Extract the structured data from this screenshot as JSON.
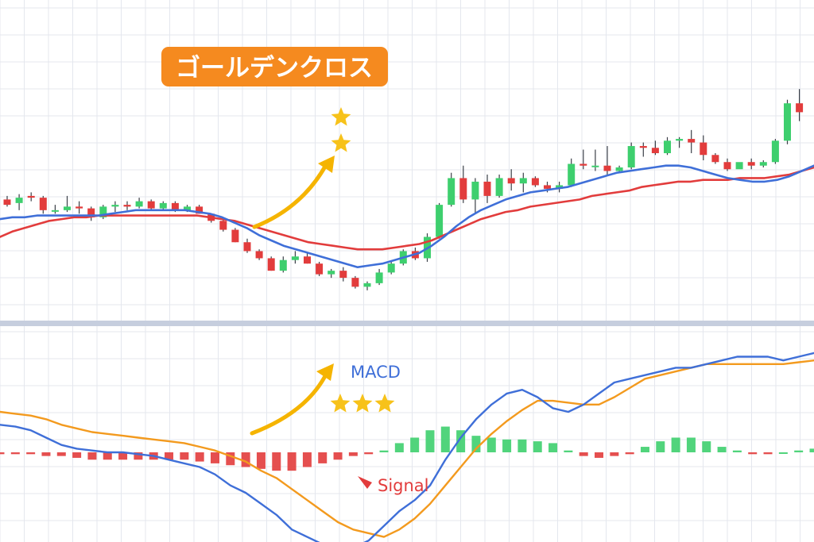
{
  "title": "ゴールデンクロス",
  "colors": {
    "background": "#ffffff",
    "grid": "#e4e7ee",
    "separator": "#c6cede",
    "bull": "#3ecf6e",
    "bear": "#e23c3c",
    "fast_ma": "#3f6fd8",
    "slow_ma": "#e23c3c",
    "macd_line": "#3f6fd8",
    "signal_line": "#f39a1e",
    "title_bg": "#f58a1f",
    "title_text": "#ffffff",
    "arrow": "#f5b400",
    "star": "#f7c21a",
    "macd_label": "#3f6fd8",
    "signal_label": "#e23c3c"
  },
  "chart_data": [
    {
      "type": "candlestick",
      "x": [
        1,
        2,
        3,
        4,
        5,
        6,
        7,
        8,
        9,
        10,
        11,
        12,
        13,
        14,
        15,
        16,
        17,
        18,
        19,
        20,
        21,
        22,
        23,
        24,
        25,
        26,
        27,
        28,
        29,
        30,
        31,
        32,
        33,
        34,
        35,
        36,
        37,
        38,
        39,
        40,
        41,
        42,
        43,
        44,
        45,
        46,
        47,
        48,
        49,
        50,
        51,
        52,
        53,
        54,
        55,
        56,
        57,
        58,
        59,
        60,
        61,
        62,
        63,
        64,
        65,
        66,
        67
      ],
      "ohlc": [
        [
          68,
          70,
          64,
          65
        ],
        [
          66,
          71,
          62,
          69
        ],
        [
          70,
          72,
          67,
          69
        ],
        [
          69,
          70,
          60,
          62
        ],
        [
          62,
          65,
          60,
          62
        ],
        [
          62,
          70,
          61,
          64
        ],
        [
          64,
          67,
          60,
          63
        ],
        [
          63,
          64,
          56,
          58
        ],
        [
          58,
          65,
          57,
          64
        ],
        [
          64,
          67,
          61,
          65
        ],
        [
          65,
          67,
          62,
          64
        ],
        [
          64,
          69,
          63,
          67
        ],
        [
          67,
          68,
          62,
          63
        ],
        [
          63,
          67,
          62,
          66
        ],
        [
          66,
          67,
          61,
          62
        ],
        [
          62,
          65,
          61,
          64
        ],
        [
          64,
          65,
          60,
          60
        ],
        [
          60,
          60,
          55,
          56
        ],
        [
          56,
          57,
          50,
          51
        ],
        [
          51,
          52,
          44,
          44
        ],
        [
          44,
          46,
          38,
          39
        ],
        [
          39,
          40,
          34,
          35
        ],
        [
          35,
          36,
          28,
          28
        ],
        [
          28,
          36,
          27,
          34
        ],
        [
          34,
          39,
          32,
          36
        ],
        [
          36,
          38,
          32,
          32
        ],
        [
          32,
          33,
          25,
          26
        ],
        [
          26,
          29,
          24,
          28
        ],
        [
          28,
          30,
          22,
          24
        ],
        [
          24,
          25,
          18,
          19
        ],
        [
          19,
          22,
          17,
          21
        ],
        [
          21,
          29,
          20,
          27
        ],
        [
          27,
          33,
          26,
          32
        ],
        [
          32,
          40,
          31,
          39
        ],
        [
          39,
          41,
          34,
          35
        ],
        [
          35,
          49,
          33,
          47
        ],
        [
          47,
          66,
          46,
          65
        ],
        [
          65,
          83,
          64,
          80
        ],
        [
          80,
          87,
          66,
          68
        ],
        [
          68,
          80,
          60,
          78
        ],
        [
          78,
          82,
          66,
          70
        ],
        [
          70,
          82,
          69,
          80
        ],
        [
          80,
          85,
          73,
          77
        ],
        [
          77,
          83,
          72,
          80
        ],
        [
          80,
          81,
          75,
          76
        ],
        [
          76,
          78,
          72,
          74
        ],
        [
          74,
          78,
          72,
          76
        ],
        [
          76,
          91,
          75,
          88
        ],
        [
          88,
          96,
          85,
          87
        ],
        [
          87,
          96,
          84,
          87
        ],
        [
          87,
          98,
          82,
          84
        ],
        [
          84,
          87,
          83,
          86
        ],
        [
          86,
          100,
          85,
          98
        ],
        [
          98,
          100,
          92,
          97
        ],
        [
          97,
          101,
          93,
          94
        ],
        [
          94,
          103,
          93,
          101
        ],
        [
          101,
          103,
          97,
          102
        ],
        [
          102,
          107,
          94,
          100
        ],
        [
          100,
          104,
          90,
          93
        ],
        [
          93,
          94,
          88,
          89
        ],
        [
          89,
          91,
          84,
          85
        ],
        [
          85,
          88,
          86,
          89
        ],
        [
          89,
          91,
          85,
          87
        ],
        [
          87,
          90,
          86,
          89
        ],
        [
          89,
          102,
          88,
          101
        ],
        [
          101,
          124,
          99,
          122
        ],
        [
          122,
          130,
          112,
          117
        ]
      ],
      "ma_fast": [
        57,
        58,
        58,
        59,
        59,
        59,
        59,
        59,
        59,
        60,
        61,
        62,
        62,
        62,
        62,
        62,
        61,
        60,
        58,
        55,
        52,
        48,
        45,
        42,
        40,
        38,
        36,
        34,
        32,
        30,
        31,
        32,
        34,
        36,
        38,
        42,
        47,
        53,
        58,
        62,
        65,
        68,
        70,
        72,
        73,
        74,
        75,
        77,
        79,
        81,
        83,
        84,
        85,
        86,
        87,
        87,
        86,
        84,
        82,
        80,
        79,
        78,
        78,
        79,
        81,
        84,
        87
      ],
      "ma_slow": [
        47,
        50,
        52,
        54,
        56,
        57,
        58,
        58,
        59,
        59,
        59,
        59,
        59,
        59,
        59,
        59,
        59,
        58,
        57,
        56,
        54,
        52,
        50,
        48,
        46,
        44,
        43,
        42,
        41,
        40,
        40,
        40,
        41,
        42,
        43,
        45,
        48,
        51,
        54,
        57,
        59,
        61,
        62,
        64,
        65,
        66,
        67,
        68,
        70,
        71,
        72,
        73,
        75,
        76,
        77,
        78,
        78,
        79,
        79,
        79,
        80,
        80,
        80,
        81,
        82,
        84,
        86
      ],
      "ylim": [
        0,
        180
      ]
    },
    {
      "type": "line+bar",
      "series": [
        {
          "values": [
            15,
            14,
            12,
            8,
            4,
            2,
            1,
            0,
            0,
            -1,
            -2,
            -4,
            -6,
            -8,
            -12,
            -18,
            -22,
            -28,
            -34,
            -42,
            -46,
            -50,
            -52,
            -52,
            -48,
            -40,
            -32,
            -26,
            -18,
            -4,
            8,
            18,
            26,
            32,
            34,
            30,
            24,
            22,
            26,
            32,
            38,
            40,
            42,
            44,
            46,
            46,
            48,
            50,
            52,
            52,
            52,
            50,
            52,
            54
          ]
        },
        {
          "values": [
            22,
            21,
            20,
            18,
            15,
            13,
            11,
            10,
            9,
            8,
            7,
            6,
            5,
            3,
            1,
            -2,
            -5,
            -10,
            -14,
            -20,
            -26,
            -32,
            -38,
            -42,
            -44,
            -46,
            -42,
            -36,
            -28,
            -18,
            -8,
            2,
            10,
            17,
            23,
            28,
            28,
            27,
            26,
            26,
            30,
            35,
            40,
            42,
            44,
            46,
            48,
            48,
            48,
            48,
            48,
            48,
            49,
            50
          ]
        },
        {
          "values": [
            -1,
            -1,
            -1,
            -2,
            -2,
            -3,
            -4,
            -4,
            -4,
            -4,
            -4,
            -4,
            -4,
            -5,
            -6,
            -7,
            -8,
            -9,
            -10,
            -10,
            -8,
            -6,
            -4,
            -2,
            -1,
            1,
            5,
            8,
            12,
            14,
            12,
            9,
            8,
            7,
            7,
            6,
            5,
            1,
            -2,
            -3,
            -2,
            -1,
            3,
            6,
            8,
            8,
            6,
            3,
            1,
            -1,
            -1,
            0,
            1,
            2
          ]
        }
      ],
      "ylim": [
        -60,
        60
      ]
    }
  ],
  "labels": {
    "macd": "MACD",
    "signal": "Signal"
  }
}
